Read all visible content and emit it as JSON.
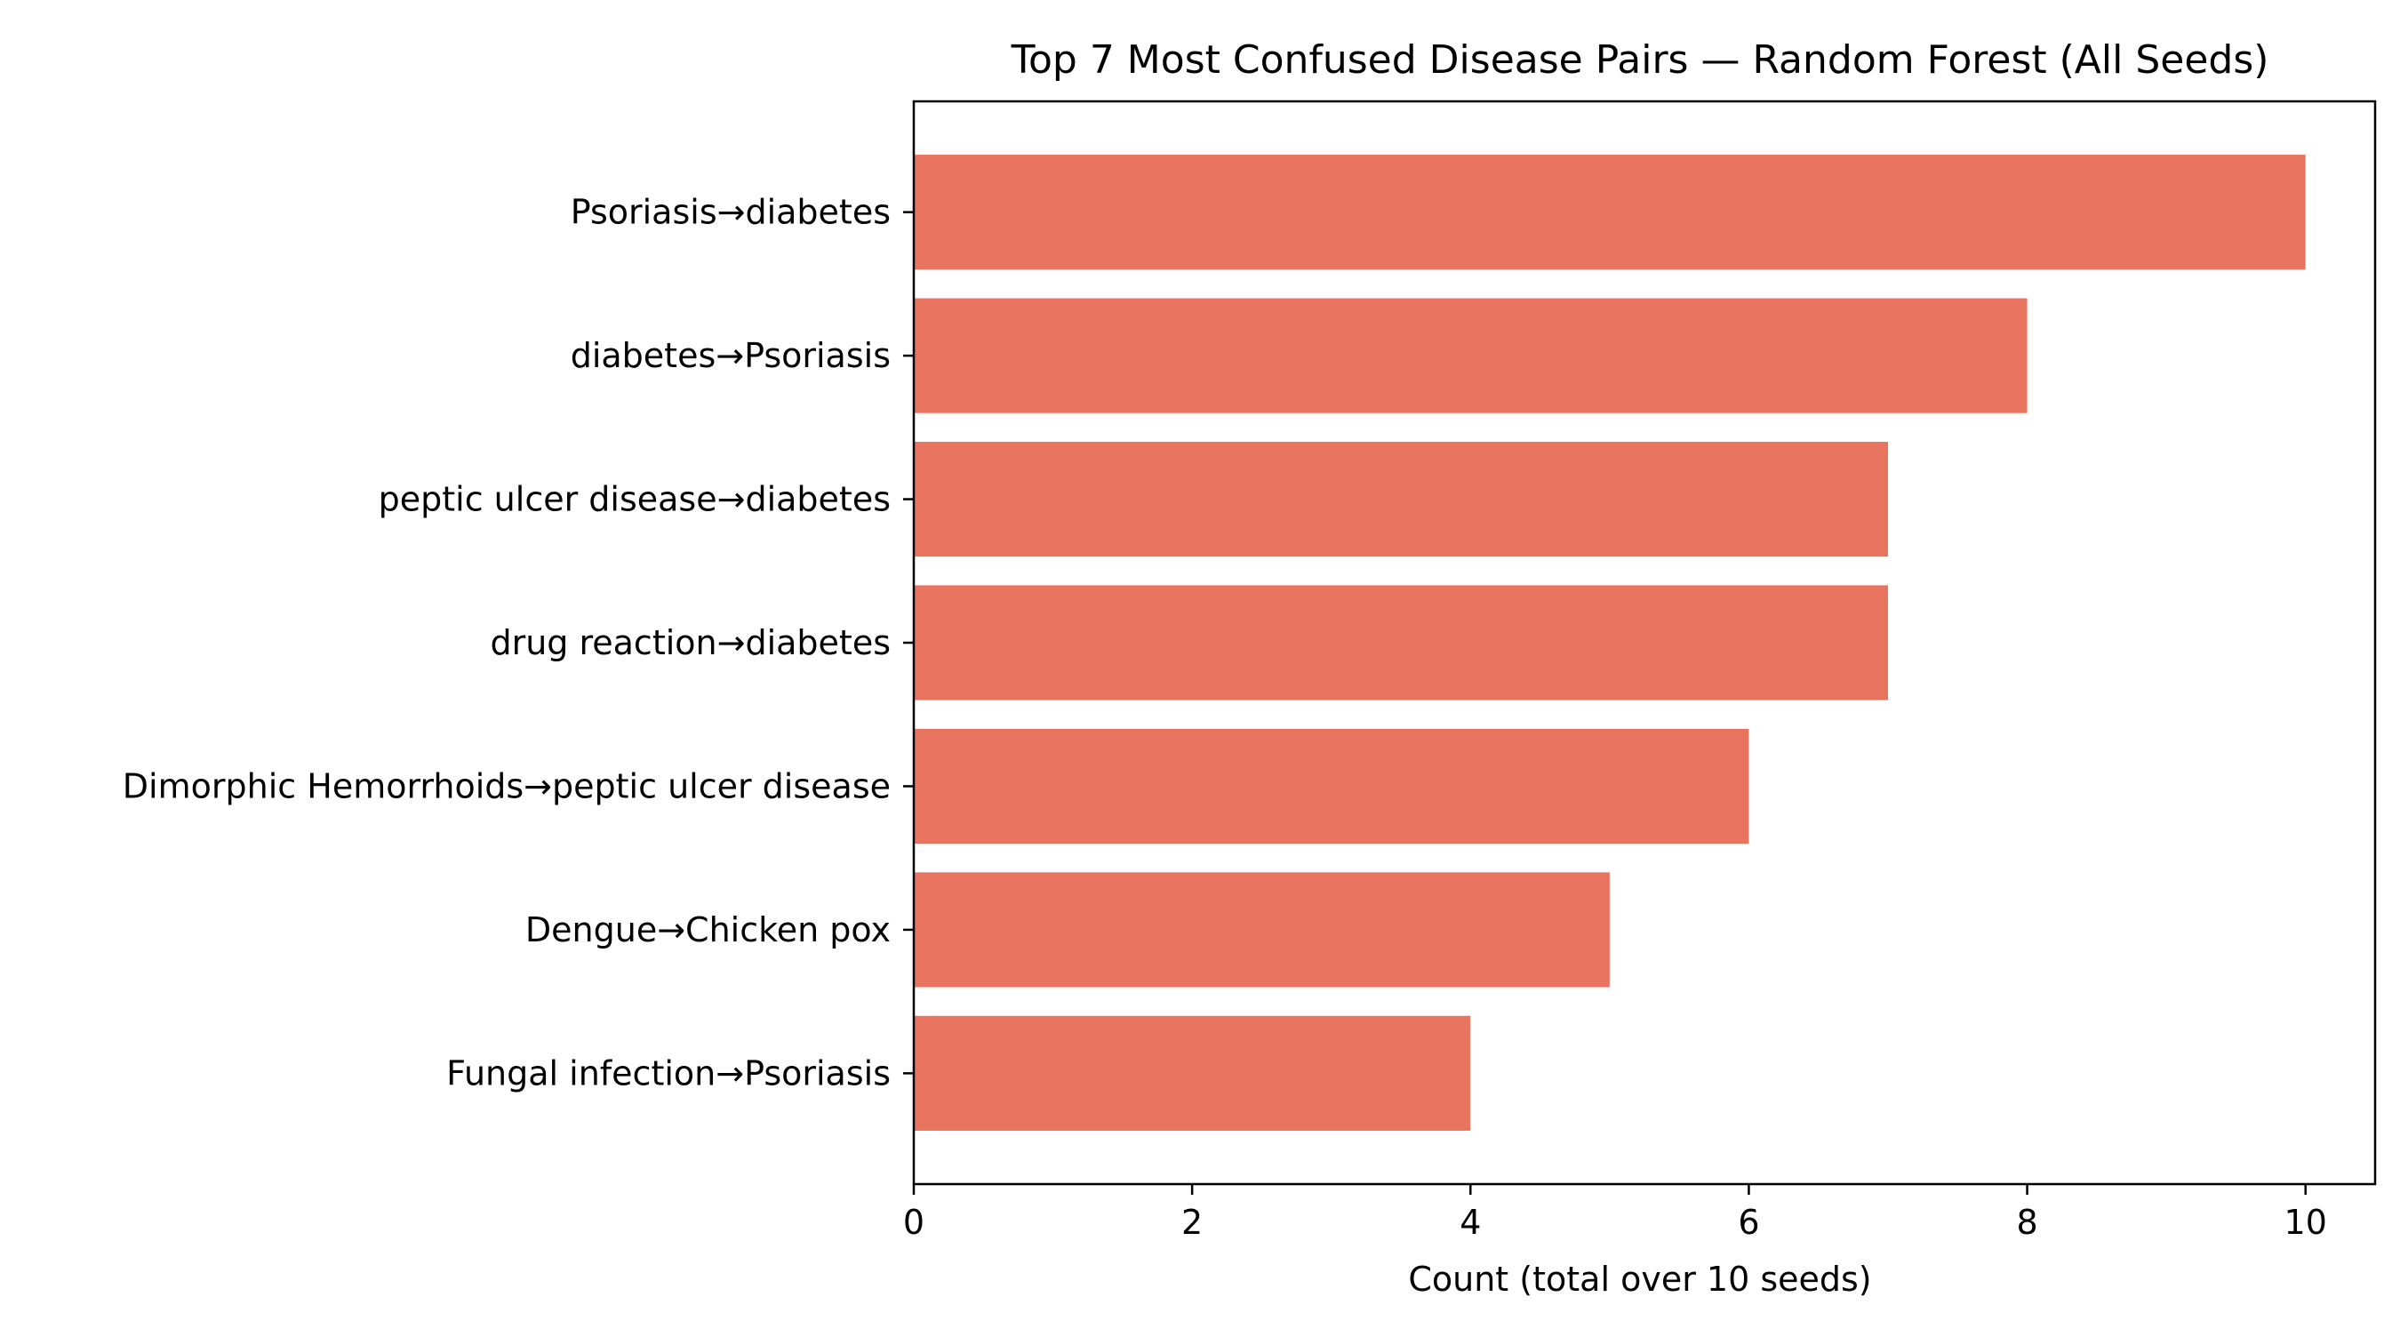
{
  "chart_data": {
    "type": "bar",
    "orientation": "horizontal",
    "title": "Top 7 Most Confused Disease Pairs — Random Forest (All Seeds)",
    "xlabel": "Count (total over 10 seeds)",
    "ylabel": "",
    "categories": [
      "Psoriasis→diabetes",
      "diabetes→Psoriasis",
      "peptic ulcer disease→diabetes",
      "drug reaction→diabetes",
      "Dimorphic Hemorrhoids→peptic ulcer disease",
      "Dengue→Chicken pox",
      "Fungal infection→Psoriasis"
    ],
    "values": [
      10,
      8,
      7,
      7,
      6,
      5,
      4
    ],
    "xlim": [
      0,
      10.5
    ],
    "xticks": [
      0,
      2,
      4,
      6,
      8,
      10
    ],
    "bar_color": "#e8735f",
    "grid": false,
    "legend": "none"
  }
}
